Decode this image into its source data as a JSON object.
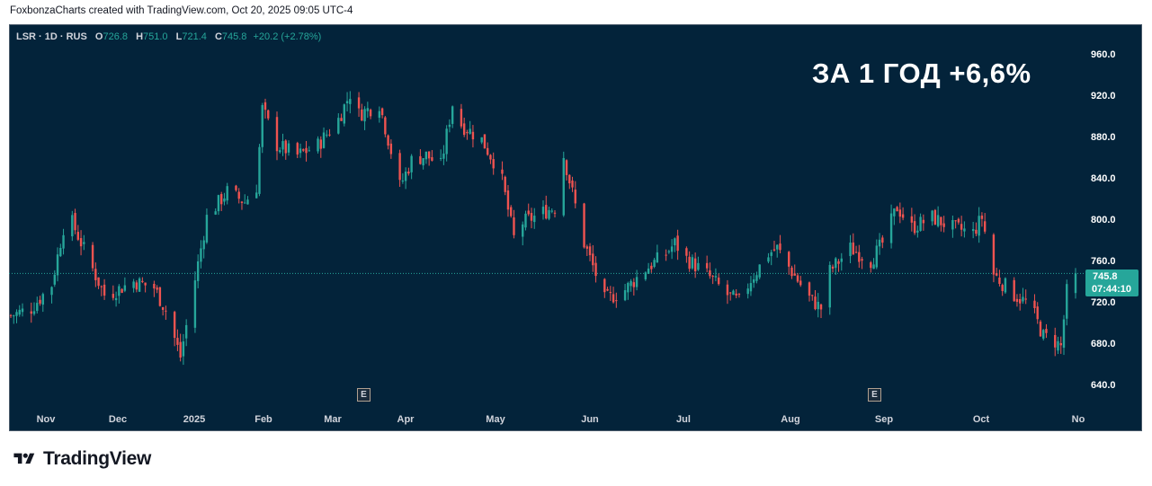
{
  "header": {
    "caption": "FoxbonzaCharts created with TradingView.com, Oct 20, 2025 09:05 UTC-4"
  },
  "legend": {
    "symbol": "LSR · 1D · RUS",
    "o_label": "O",
    "o_value": "726.8",
    "h_label": "H",
    "h_value": "751.0",
    "l_label": "L",
    "l_value": "721.4",
    "c_label": "C",
    "c_value": "745.8",
    "change": "+20.2 (+2.78%)"
  },
  "overlay": {
    "title": "ЗА 1 ГОД +6,6%"
  },
  "price_tag": {
    "price": "745.8",
    "countdown": "07:44:10"
  },
  "earnings_marker": {
    "label": "E"
  },
  "brand": {
    "name": "TradingView"
  },
  "colors": {
    "up": "#26a69a",
    "down": "#ef5350",
    "background": "#03233a",
    "tag": "#26a69a"
  },
  "chart_data": {
    "type": "candlestick",
    "y_axis": {
      "ticks": [
        "960.0",
        "920.0",
        "880.0",
        "840.0",
        "800.0",
        "760.0",
        "720.0",
        "680.0",
        "640.0"
      ],
      "range": [
        620,
        975
      ]
    },
    "x_axis": {
      "ticks": [
        "Nov",
        "Dec",
        "2025",
        "Feb",
        "Mar",
        "Apr",
        "May",
        "Jun",
        "Jul",
        "Aug",
        "Sep",
        "Oct",
        "No"
      ]
    },
    "last_price": 745.8,
    "earnings_events": [
      "2025-04-10",
      "2025-09-02"
    ],
    "close_series": [
      {
        "date": "2024-10-21",
        "close": 705
      },
      {
        "date": "2024-10-28",
        "close": 712
      },
      {
        "date": "2024-11-04",
        "close": 735
      },
      {
        "date": "2024-11-08",
        "close": 790
      },
      {
        "date": "2024-11-11",
        "close": 795
      },
      {
        "date": "2024-11-18",
        "close": 750
      },
      {
        "date": "2024-11-22",
        "close": 725
      },
      {
        "date": "2024-11-25",
        "close": 728
      },
      {
        "date": "2024-12-02",
        "close": 738
      },
      {
        "date": "2024-12-09",
        "close": 732
      },
      {
        "date": "2024-12-13",
        "close": 710
      },
      {
        "date": "2024-12-18",
        "close": 665
      },
      {
        "date": "2024-12-23",
        "close": 740
      },
      {
        "date": "2024-12-27",
        "close": 800
      },
      {
        "date": "2025-01-03",
        "close": 825
      },
      {
        "date": "2025-01-09",
        "close": 815
      },
      {
        "date": "2025-01-13",
        "close": 830
      },
      {
        "date": "2025-01-15",
        "close": 905
      },
      {
        "date": "2025-01-20",
        "close": 870
      },
      {
        "date": "2025-01-27",
        "close": 860
      },
      {
        "date": "2025-02-03",
        "close": 870
      },
      {
        "date": "2025-02-10",
        "close": 895
      },
      {
        "date": "2025-02-14",
        "close": 920
      },
      {
        "date": "2025-02-17",
        "close": 900
      },
      {
        "date": "2025-02-24",
        "close": 910
      },
      {
        "date": "2025-03-03",
        "close": 830
      },
      {
        "date": "2025-03-07",
        "close": 855
      },
      {
        "date": "2025-03-12",
        "close": 860
      },
      {
        "date": "2025-03-17",
        "close": 850
      },
      {
        "date": "2025-03-21",
        "close": 910
      },
      {
        "date": "2025-03-24",
        "close": 890
      },
      {
        "date": "2025-03-31",
        "close": 875
      },
      {
        "date": "2025-04-04",
        "close": 855
      },
      {
        "date": "2025-04-07",
        "close": 835
      },
      {
        "date": "2025-04-11",
        "close": 780
      },
      {
        "date": "2025-04-14",
        "close": 795
      },
      {
        "date": "2025-04-21",
        "close": 805
      },
      {
        "date": "2025-04-25",
        "close": 810
      },
      {
        "date": "2025-04-28",
        "close": 860
      },
      {
        "date": "2025-05-05",
        "close": 775
      },
      {
        "date": "2025-05-09",
        "close": 745
      },
      {
        "date": "2025-05-12",
        "close": 720
      },
      {
        "date": "2025-05-19",
        "close": 730
      },
      {
        "date": "2025-05-26",
        "close": 750
      },
      {
        "date": "2025-06-02",
        "close": 765
      },
      {
        "date": "2025-06-05",
        "close": 775
      },
      {
        "date": "2025-06-09",
        "close": 760
      },
      {
        "date": "2025-06-16",
        "close": 745
      },
      {
        "date": "2025-06-23",
        "close": 725
      },
      {
        "date": "2025-06-27",
        "close": 718
      },
      {
        "date": "2025-07-01",
        "close": 740
      },
      {
        "date": "2025-07-07",
        "close": 765
      },
      {
        "date": "2025-07-10",
        "close": 770
      },
      {
        "date": "2025-07-14",
        "close": 752
      },
      {
        "date": "2025-07-21",
        "close": 722
      },
      {
        "date": "2025-07-25",
        "close": 712
      },
      {
        "date": "2025-07-28",
        "close": 748
      },
      {
        "date": "2025-08-04",
        "close": 770
      },
      {
        "date": "2025-08-11",
        "close": 758
      },
      {
        "date": "2025-08-15",
        "close": 775
      },
      {
        "date": "2025-08-20",
        "close": 810
      },
      {
        "date": "2025-08-25",
        "close": 790
      },
      {
        "date": "2025-09-01",
        "close": 800
      },
      {
        "date": "2025-09-08",
        "close": 790
      },
      {
        "date": "2025-09-15",
        "close": 785
      },
      {
        "date": "2025-09-18",
        "close": 800
      },
      {
        "date": "2025-09-22",
        "close": 745
      },
      {
        "date": "2025-09-29",
        "close": 725
      },
      {
        "date": "2025-10-03",
        "close": 718
      },
      {
        "date": "2025-10-06",
        "close": 705
      },
      {
        "date": "2025-10-09",
        "close": 685
      },
      {
        "date": "2025-10-13",
        "close": 680
      },
      {
        "date": "2025-10-15",
        "close": 675
      },
      {
        "date": "2025-10-17",
        "close": 728
      },
      {
        "date": "2025-10-20",
        "close": 745.8
      }
    ]
  }
}
